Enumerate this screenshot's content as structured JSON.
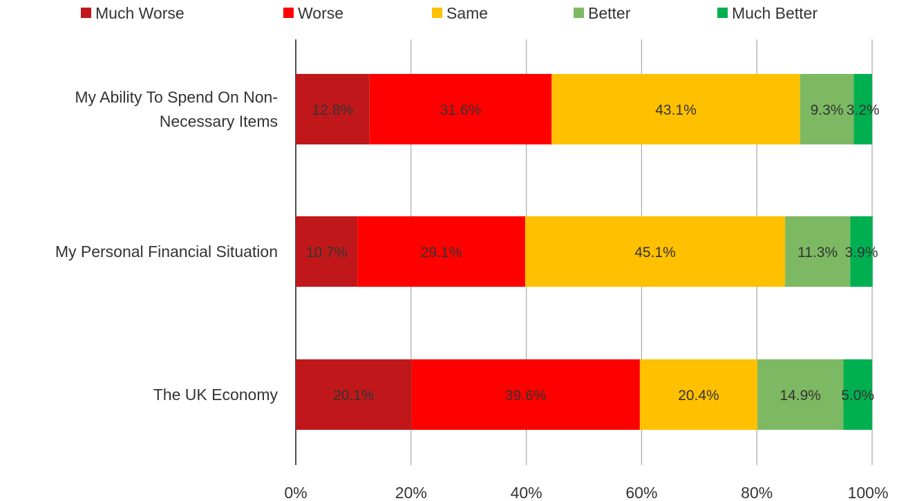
{
  "chart_data": {
    "type": "bar",
    "orientation": "horizontal",
    "stacked": true,
    "title": "",
    "categories": [
      [
        "My Ability To Spend On Non-",
        "Necessary Items"
      ],
      [
        "My Personal Financial Situation"
      ],
      [
        "The UK Economy"
      ]
    ],
    "series": [
      {
        "name": "Much Worse",
        "color": "#C0181A",
        "values": [
          12.8,
          10.7,
          20.1
        ]
      },
      {
        "name": "Worse",
        "color": "#FF0000",
        "values": [
          31.6,
          29.1,
          39.6
        ]
      },
      {
        "name": "Same",
        "color": "#FFC000",
        "values": [
          43.1,
          45.1,
          20.4
        ]
      },
      {
        "name": "Better",
        "color": "#7DB962",
        "values": [
          9.3,
          11.3,
          14.9
        ]
      },
      {
        "name": "Much Better",
        "color": "#00B050",
        "values": [
          3.2,
          3.9,
          5.0
        ]
      }
    ],
    "data_labels": [
      [
        "12.8%",
        "10.7%",
        "20.1%"
      ],
      [
        "31.6%",
        "29.1%",
        "39.6%"
      ],
      [
        "43.1%",
        "45.1%",
        "20.4%"
      ],
      [
        "9.3%",
        "11.3%",
        "14.9%"
      ],
      [
        "3.2%",
        "3.9%",
        "5.0%"
      ]
    ],
    "x_ticks": [
      "0%",
      "20%",
      "40%",
      "60%",
      "80%",
      "100%"
    ],
    "xlim": [
      0,
      100
    ],
    "grid": true,
    "legend_position": "top"
  }
}
